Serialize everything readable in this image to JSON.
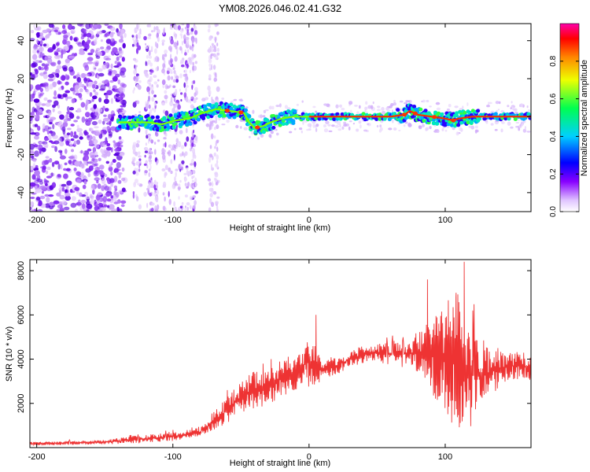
{
  "title": "YM08.2026.046.02.41.G32",
  "chart_data": [
    {
      "type": "heatmap",
      "title": "YM08.2026.046.02.41.G32",
      "xlabel": "Height of straight line (km)",
      "ylabel": "Frequency (Hz)",
      "xlim": [
        -205,
        163
      ],
      "ylim": [
        -50,
        49
      ],
      "xticks": [
        -200,
        -100,
        0,
        100
      ],
      "yticks": [
        -40,
        -20,
        0,
        20,
        40
      ],
      "ridge_frequency_hz": {
        "x": [
          -138,
          -128,
          -118,
          -108,
          -98,
          -88,
          -78,
          -68,
          -58,
          -48,
          -44,
          -40,
          -34,
          -28,
          -20,
          -12,
          -5,
          0,
          20,
          60,
          70,
          74,
          80,
          90,
          100,
          106,
          110,
          120,
          140,
          163
        ],
        "y": [
          -3,
          -3,
          -3,
          -4,
          -2,
          -1,
          2,
          4,
          3,
          2,
          -3,
          -6,
          -5,
          -3,
          -1,
          0,
          0,
          0,
          0,
          0,
          1,
          3,
          1,
          0,
          -1,
          -2,
          -1,
          0,
          0,
          0
        ]
      },
      "colorbar": {
        "label": "Normalized spectral amplitude",
        "range": [
          0,
          1
        ],
        "ticks": [
          0.0,
          0.2,
          0.4,
          0.6,
          0.8
        ],
        "colormap": [
          "#ffffff",
          "#d8b4f8",
          "#7a00ff",
          "#0000ff",
          "#00c8ff",
          "#00ff66",
          "#e8ff00",
          "#ff8800",
          "#ff0000",
          "#ff00aa"
        ]
      }
    },
    {
      "type": "line",
      "xlabel": "Height of straight line (km)",
      "ylabel": "SNR (10 * v/v)",
      "xlim": [
        -205,
        163
      ],
      "ylim": [
        0,
        8500
      ],
      "xticks": [
        -200,
        -100,
        0,
        100
      ],
      "yticks": [
        2000,
        4000,
        6000,
        8000
      ],
      "color": "#ee3333",
      "envelope": {
        "x": [
          -205,
          -150,
          -120,
          -100,
          -80,
          -70,
          -60,
          -50,
          -40,
          -30,
          -20,
          -10,
          0,
          10,
          20,
          30,
          40,
          50,
          60,
          70,
          80,
          90,
          100,
          110,
          120,
          130,
          140,
          150,
          163
        ],
        "low": [
          100,
          150,
          200,
          300,
          500,
          800,
          1100,
          1600,
          1700,
          1900,
          2300,
          2600,
          2700,
          3000,
          3300,
          3600,
          3800,
          3900,
          3700,
          3600,
          3300,
          2500,
          1300,
          700,
          900,
          2000,
          2800,
          3000,
          3000
        ],
        "high": [
          250,
          350,
          600,
          700,
          900,
          1600,
          2300,
          3000,
          3500,
          3700,
          4000,
          4300,
          5200,
          3900,
          4100,
          4400,
          4600,
          4700,
          4800,
          5000,
          5200,
          6000,
          6500,
          7200,
          5700,
          4700,
          4400,
          4400,
          4300
        ]
      },
      "peaks": {
        "x": [
          -100,
          -60,
          -34,
          -28,
          5,
          87,
          108,
          114,
          120
        ],
        "y": [
          800,
          2600,
          3800,
          4000,
          6000,
          7600,
          7000,
          8400,
          6200
        ]
      }
    }
  ]
}
